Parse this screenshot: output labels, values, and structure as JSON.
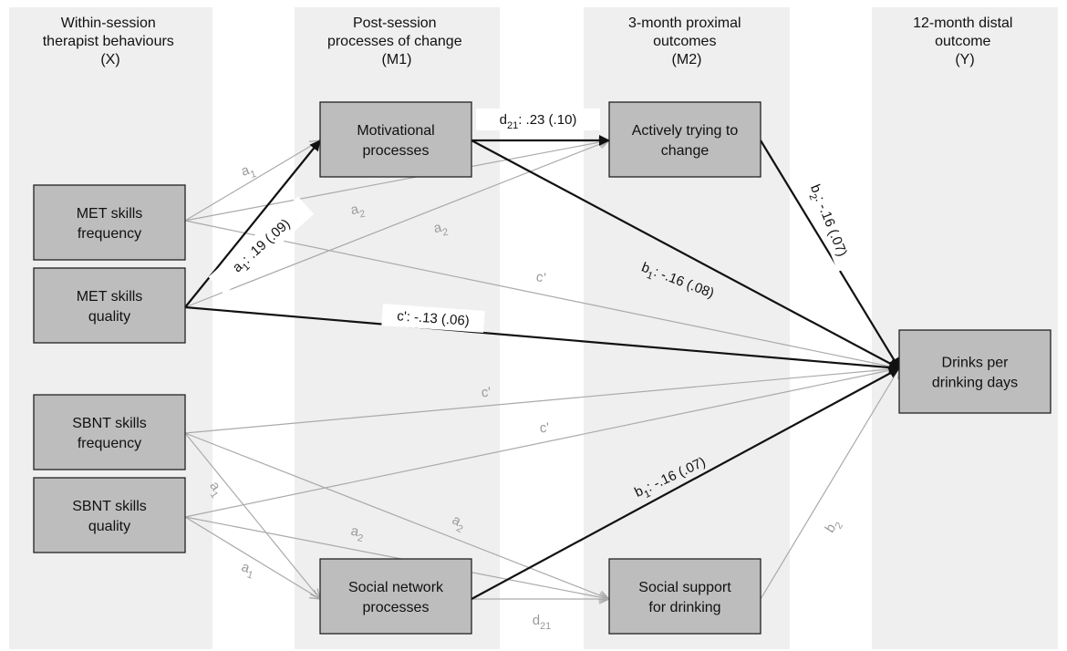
{
  "columns": [
    {
      "lines": [
        "Within-session",
        "therapist behaviours",
        "(X)"
      ]
    },
    {
      "lines": [
        "Post-session",
        "processes of change",
        "(M1)"
      ]
    },
    {
      "lines": [
        "3-month proximal",
        "outcomes",
        "(M2)"
      ]
    },
    {
      "lines": [
        "12-month distal",
        "outcome",
        "(Y)"
      ]
    }
  ],
  "nodes": {
    "met_freq": {
      "lines": [
        "MET skills",
        "frequency"
      ]
    },
    "met_qual": {
      "lines": [
        "MET skills",
        "quality"
      ]
    },
    "sbnt_freq": {
      "lines": [
        "SBNT skills",
        "frequency"
      ]
    },
    "sbnt_qual": {
      "lines": [
        "SBNT skills",
        "quality"
      ]
    },
    "motiv": {
      "lines": [
        "Motivational",
        "processes"
      ]
    },
    "social_net": {
      "lines": [
        "Social network",
        "processes"
      ]
    },
    "active": {
      "lines": [
        "Actively trying to",
        "change"
      ]
    },
    "social_sup": {
      "lines": [
        "Social support",
        "for drinking"
      ]
    },
    "drinks": {
      "lines": [
        "Drinks per",
        "drinking days"
      ]
    }
  },
  "paths": [
    {
      "id": "a1-met-freq-motiv",
      "from": "met_freq",
      "to": "motiv",
      "significant": false,
      "label": {
        "sym": "a",
        "sub": "1",
        "val": ""
      }
    },
    {
      "id": "a2-met-freq-active",
      "from": "met_freq",
      "to": "active",
      "significant": false,
      "label": {
        "sym": "a",
        "sub": "2",
        "val": ""
      }
    },
    {
      "id": "c-met-freq-drinks",
      "from": "met_freq",
      "to": "drinks",
      "significant": false,
      "label": {
        "sym": "c'",
        "sub": "",
        "val": ""
      }
    },
    {
      "id": "a1-met-qual-motiv",
      "from": "met_qual",
      "to": "motiv",
      "significant": true,
      "label": {
        "sym": "a",
        "sub": "1",
        "val": ": .19 (.09)"
      }
    },
    {
      "id": "a2-met-qual-active",
      "from": "met_qual",
      "to": "active",
      "significant": false,
      "label": {
        "sym": "a",
        "sub": "2",
        "val": ""
      }
    },
    {
      "id": "c-met-qual-drinks",
      "from": "met_qual",
      "to": "drinks",
      "significant": true,
      "label": {
        "sym": "c'",
        "sub": "",
        "val": ": -.13 (.06)"
      }
    },
    {
      "id": "d21-motiv-active",
      "from": "motiv",
      "to": "active",
      "significant": true,
      "label": {
        "sym": "d",
        "sub": "21",
        "val": ": .23 (.10)"
      }
    },
    {
      "id": "b1-motiv-drinks",
      "from": "motiv",
      "to": "drinks",
      "significant": true,
      "label": {
        "sym": "b",
        "sub": "1",
        "val": ": -.16 (.08)"
      }
    },
    {
      "id": "b2-active-drinks",
      "from": "active",
      "to": "drinks",
      "significant": true,
      "label": {
        "sym": "b",
        "sub": "2",
        "val": ": -.16 (.07)"
      }
    },
    {
      "id": "c-sbnt-freq-drinks",
      "from": "sbnt_freq",
      "to": "drinks",
      "significant": false,
      "label": {
        "sym": "c'",
        "sub": "",
        "val": ""
      }
    },
    {
      "id": "c-sbnt-qual-drinks",
      "from": "sbnt_qual",
      "to": "drinks",
      "significant": false,
      "label": {
        "sym": "c'",
        "sub": "",
        "val": ""
      }
    },
    {
      "id": "a1-sbnt-freq-social",
      "from": "sbnt_freq",
      "to": "social_net",
      "significant": false,
      "label": {
        "sym": "a",
        "sub": "1",
        "val": ""
      }
    },
    {
      "id": "a2-sbnt-freq-sup",
      "from": "sbnt_freq",
      "to": "social_sup",
      "significant": false,
      "label": {
        "sym": "a",
        "sub": "2",
        "val": ""
      }
    },
    {
      "id": "a1-sbnt-qual-social",
      "from": "sbnt_qual",
      "to": "social_net",
      "significant": false,
      "label": {
        "sym": "a",
        "sub": "1",
        "val": ""
      }
    },
    {
      "id": "a2-sbnt-qual-sup",
      "from": "sbnt_qual",
      "to": "social_sup",
      "significant": false,
      "label": {
        "sym": "a",
        "sub": "2",
        "val": ""
      }
    },
    {
      "id": "d21-social-sup",
      "from": "social_net",
      "to": "social_sup",
      "significant": false,
      "label": {
        "sym": "d",
        "sub": "21",
        "val": ""
      }
    },
    {
      "id": "b1-social-drinks",
      "from": "social_net",
      "to": "drinks",
      "significant": true,
      "label": {
        "sym": "b",
        "sub": "1",
        "val": ": -.16 (.07)"
      }
    },
    {
      "id": "b2-sup-drinks",
      "from": "social_sup",
      "to": "drinks",
      "significant": false,
      "label": {
        "sym": "b",
        "sub": "2",
        "val": ""
      }
    }
  ]
}
